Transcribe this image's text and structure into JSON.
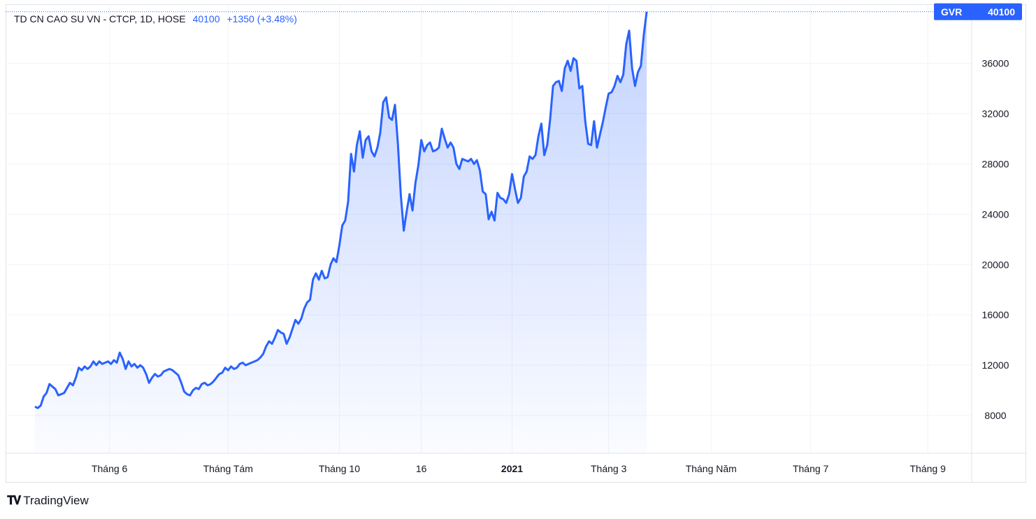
{
  "header": {
    "symbol_title": "TD CN CAO SU VN - CTCP, 1D, HOSE",
    "last_price": "40100",
    "change": "+1350 (+3.48%)"
  },
  "price_badge": {
    "ticker": "GVR",
    "value": "40100"
  },
  "brand": {
    "name": "TradingView"
  },
  "colors": {
    "line": "#2962ff",
    "fill_top": "#2962ff",
    "grid": "#f0f3fa",
    "badge": "#2962ff"
  },
  "chart_data": {
    "type": "area",
    "y_ticks": [
      8000,
      12000,
      16000,
      20000,
      24000,
      28000,
      32000,
      36000
    ],
    "y_tick_labels": [
      "8000",
      "12000",
      "16000",
      "20000",
      "24000",
      "28000",
      "32000",
      "36000"
    ],
    "ylim": [
      5000,
      40700
    ],
    "x_tick_labels": [
      "Tháng 6",
      "Tháng Tám",
      "Tháng 10",
      "16",
      "2021",
      "Tháng 3",
      "Tháng Năm",
      "Tháng 7",
      "Tháng 9"
    ],
    "x_tick_positions": [
      25.5,
      66,
      104,
      132,
      163,
      196,
      231,
      265,
      305
    ],
    "xlim": [
      -10,
      320
    ],
    "grid": true,
    "series": [
      {
        "values": [
          8700,
          8600,
          8800,
          9500,
          9800,
          10500,
          10300,
          10100,
          9600,
          9700,
          9800,
          10200,
          10600,
          10400,
          11000,
          11800,
          11600,
          11900,
          11700,
          11900,
          12300,
          12000,
          12300,
          12100,
          12200,
          12300,
          12100,
          12400,
          12200,
          13000,
          12500,
          11700,
          12300,
          11900,
          12100,
          11800,
          12000,
          11800,
          11300,
          10600,
          11000,
          11300,
          11100,
          11200,
          11500,
          11600,
          11700,
          11600,
          11400,
          11200,
          10600,
          9900,
          9700,
          9600,
          10000,
          10200,
          10100,
          10500,
          10600,
          10400,
          10500,
          10700,
          11000,
          11300,
          11400,
          11800,
          11600,
          11900,
          11700,
          11800,
          12100,
          12200,
          12000,
          12100,
          12200,
          12300,
          12400,
          12600,
          12900,
          13500,
          13900,
          13700,
          14200,
          14800,
          14600,
          14500,
          13700,
          14200,
          14900,
          15600,
          15300,
          15700,
          16500,
          17000,
          17200,
          18800,
          19300,
          18800,
          19500,
          18900,
          19000,
          20000,
          20500,
          20200,
          21500,
          23100,
          23500,
          25000,
          28800,
          27400,
          29500,
          30600,
          28500,
          29900,
          30200,
          29000,
          28600,
          29300,
          30500,
          32900,
          33300,
          31700,
          31500,
          32700,
          29600,
          25500,
          22700,
          24200,
          25600,
          24300,
          26500,
          27900,
          29900,
          29000,
          29500,
          29700,
          29000,
          29100,
          29300,
          30800,
          30000,
          29300,
          29700,
          29300,
          28000,
          27600,
          28400,
          28300,
          28200,
          28400,
          28000,
          28300,
          27500,
          25800,
          25600,
          23600,
          24200,
          23500,
          25700,
          25300,
          25200,
          24900,
          25600,
          27200,
          26000,
          24900,
          25300,
          27000,
          27400,
          28600,
          28400,
          28700,
          30200,
          31200,
          28700,
          29500,
          31500,
          34200,
          34500,
          34600,
          33800,
          35600,
          36200,
          35400,
          36400,
          36200,
          34000,
          34200,
          31400,
          29600,
          29500,
          31400,
          29300,
          30300,
          31300,
          32500,
          33600,
          33700,
          34200,
          35000,
          34500,
          35100,
          37500,
          38600,
          35600,
          34200,
          35300,
          35800,
          38300,
          40100
        ]
      }
    ]
  }
}
